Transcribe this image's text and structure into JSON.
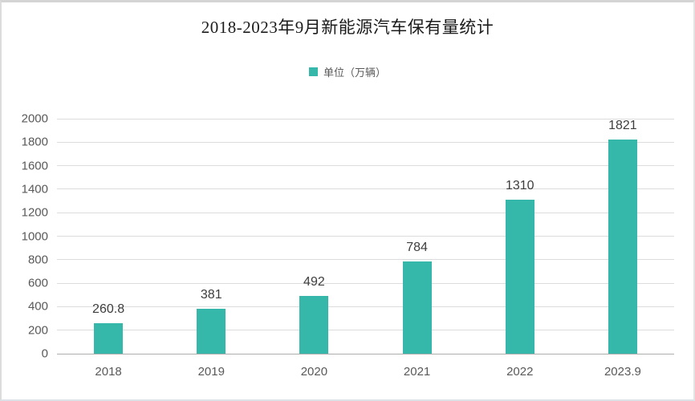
{
  "page": {
    "background_color": "#ffffff",
    "border_color": "#d6d6d6"
  },
  "title": "2018-2023年9月新能源汽车保有量统计",
  "legend": {
    "label": "单位（万辆）",
    "swatch_color": "#35b8aa"
  },
  "chart_data": {
    "type": "bar",
    "title": "2018-2023年9月新能源汽车保有量统计",
    "categories": [
      "2018",
      "2019",
      "2020",
      "2021",
      "2022",
      "2023.9"
    ],
    "values": [
      260.8,
      381,
      492,
      784,
      1310,
      1821
    ],
    "value_labels": [
      "260.8",
      "381",
      "492",
      "784",
      "1310",
      "1821"
    ],
    "series_name": "单位（万辆）",
    "xlabel": "",
    "ylabel": "",
    "ylim": [
      0,
      2000
    ],
    "ytick_step": 200,
    "ytick_labels": [
      "0",
      "200",
      "400",
      "600",
      "800",
      "1000",
      "1200",
      "1400",
      "1600",
      "1800",
      "2000"
    ],
    "grid": true,
    "legend_position": "top",
    "colors": {
      "bar": "#35b8aa",
      "value_label": "#3d3d3d",
      "axis_tick_label": "#595959",
      "gridline": "#dcdcdc",
      "axis_line": "#adadad",
      "title": "#1c1c1c"
    }
  }
}
